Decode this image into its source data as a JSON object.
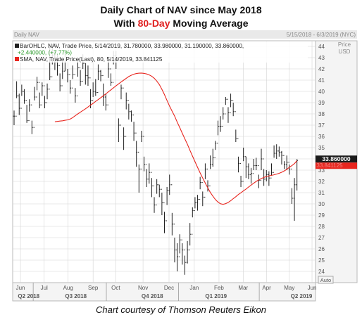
{
  "header": {
    "title_line1": "Daily Chart of NAV since May 2018",
    "title_line2_prefix": "With ",
    "title_line2_highlight": "80-Day",
    "title_line2_suffix": " Moving Average"
  },
  "chart_header": {
    "name": "Daily NAV",
    "date_range": "5/15/2018 - 6/3/2019 (NYC)",
    "price_label": "Price",
    "currency": "USD",
    "ohlc_label": "BarOHLC, NAV, Trade Price, 5/14/2019, 31.780000, 33.980000, 31.190000, 33.860000,",
    "change_label": "+2.440000, (+7.77%)",
    "sma_label": "SMA, NAV, Trade Price(Last), 80, 5/14/2019, 33.841125",
    "last_price_tag": "33.860000",
    "sma_tag": "33.841125",
    "auto_label": "Auto"
  },
  "caption": "Chart courtesy of Thomson Reuters Eikon",
  "colors": {
    "bars": "#1f1f1f",
    "sma": "#e8261f",
    "grid": "#d4d4d4",
    "panel_bg": "#ffffff",
    "tag_bg": "#1a1a1a",
    "sma_tag_bg": "#e8261f",
    "highlight": "#e02020",
    "change_text": "#2a9a2a",
    "axis_text": "#555555"
  },
  "chart_data": {
    "type": "ohlc",
    "ylim": [
      23,
      44.5
    ],
    "y_ticks": [
      24,
      25,
      26,
      27,
      28,
      29,
      30,
      31,
      32,
      33,
      34,
      35,
      36,
      37,
      38,
      39,
      40,
      41,
      42,
      43,
      44
    ],
    "month_labels": [
      "Jun",
      "Jul",
      "Aug",
      "Sep",
      "Oct",
      "Nov",
      "Dec",
      "Jan",
      "Feb",
      "Mar",
      "Apr",
      "May",
      "Jun"
    ],
    "month_positions": [
      2.5,
      11.8,
      21.2,
      31.0,
      39.9,
      50.6,
      60.8,
      70.7,
      80.4,
      89.9,
      99.1,
      108.0,
      116.9
    ],
    "quarter_labels": [
      "Q2 2018",
      "Q3 2018",
      "Q4 2018",
      "Q1 2019",
      "Q2 2019"
    ],
    "quarter_positions": [
      1.5,
      20.0,
      50.0,
      75.0,
      108.5
    ],
    "quarter_dividers": [
      7.5,
      36.2,
      64.5,
      96.2
    ],
    "close": [
      37.8,
      39.6,
      38.5,
      40.0,
      39.2,
      37.4,
      38.8,
      36.8,
      39.5,
      40.8,
      38.8,
      40.5,
      39.0,
      40.2,
      41.3,
      43.2,
      42.6,
      42.3,
      40.5,
      41.8,
      42.8,
      41.5,
      40.3,
      41.5,
      39.6,
      42.1,
      40.9,
      42.5,
      41.4,
      41.2,
      39.2,
      40.0,
      39.9,
      41.8,
      41.4,
      39.5,
      38.8,
      42.0,
      40.8,
      43.2,
      42.8,
      37.0,
      40.3,
      36.0,
      39.2,
      38.2,
      37.9,
      36.3,
      34.6,
      33.1,
      36.0,
      33.5,
      32.2,
      32.8,
      31.6,
      29.9,
      31.7,
      31.3,
      30.1,
      28.5,
      31.2,
      31.7,
      28.2,
      25.9,
      25.3,
      26.8,
      25.9,
      24.8,
      25.9,
      27.3,
      29.4,
      30.1,
      30.4,
      31.9,
      30.6,
      33.1,
      31.6,
      33.5,
      34.1,
      35.4,
      36.9,
      36.9,
      38.0,
      39.3,
      38.1,
      39.2,
      38.2,
      35.8,
      33.6,
      32.0,
      34.2,
      33.3,
      32.6,
      32.7,
      33.4,
      33.4,
      32.1,
      34.0,
      32.2,
      32.6,
      32.3,
      32.8,
      34.5,
      34.7,
      34.6,
      34.3,
      33.5,
      33.7,
      33.1,
      30.5,
      31.7,
      33.86
    ],
    "high": [
      38.3,
      40.9,
      39.8,
      40.6,
      40.2,
      38.8,
      39.3,
      37.4,
      40.4,
      41.3,
      39.9,
      40.8,
      39.6,
      40.7,
      44.0,
      44.2,
      43.6,
      43.3,
      41.6,
      42.7,
      43.6,
      42.0,
      41.0,
      42.3,
      40.3,
      42.8,
      41.9,
      43.3,
      42.5,
      42.3,
      40.2,
      40.8,
      41.1,
      42.4,
      41.9,
      40.7,
      39.8,
      43.0,
      41.6,
      43.6,
      43.6,
      37.6,
      40.6,
      36.8,
      39.9,
      38.9,
      38.3,
      37.3,
      35.6,
      33.5,
      36.5,
      34.2,
      33.1,
      33.6,
      32.3,
      30.6,
      32.2,
      31.7,
      31.0,
      29.3,
      31.5,
      32.6,
      29.2,
      27.0,
      26.5,
      27.3,
      26.5,
      25.4,
      26.7,
      28.3,
      29.7,
      30.6,
      30.8,
      32.4,
      31.1,
      33.6,
      32.1,
      34.3,
      34.9,
      35.6,
      37.4,
      37.8,
      38.6,
      39.5,
      38.6,
      39.8,
      39.0,
      36.6,
      34.2,
      32.5,
      35.0,
      34.2,
      33.6,
      33.2,
      34.0,
      34.1,
      32.6,
      34.9,
      33.1,
      33.0,
      32.9,
      33.6,
      35.2,
      35.3,
      35.1,
      34.7,
      33.8,
      34.3,
      33.5,
      31.4,
      32.3,
      33.98
    ],
    "low": [
      37.0,
      39.4,
      37.9,
      39.6,
      38.9,
      37.2,
      38.2,
      36.2,
      39.2,
      40.1,
      38.5,
      39.6,
      38.5,
      39.3,
      41.0,
      42.4,
      41.9,
      41.4,
      40.0,
      41.1,
      41.8,
      40.8,
      39.8,
      41.1,
      39.0,
      41.3,
      40.5,
      42.0,
      40.6,
      40.5,
      38.5,
      39.5,
      39.6,
      41.0,
      40.9,
      38.7,
      38.3,
      41.2,
      40.5,
      42.4,
      42.0,
      35.5,
      39.3,
      34.8,
      38.4,
      37.5,
      37.3,
      35.6,
      33.3,
      31.0,
      35.5,
      32.9,
      31.5,
      31.8,
      30.6,
      29.2,
      30.9,
      30.6,
      29.0,
      27.4,
      29.9,
      30.8,
      27.2,
      24.8,
      24.0,
      25.6,
      24.6,
      23.7,
      24.7,
      26.3,
      28.8,
      29.6,
      29.4,
      31.3,
      29.8,
      32.2,
      31.1,
      33.1,
      33.3,
      34.8,
      36.1,
      36.4,
      37.5,
      38.8,
      37.2,
      38.6,
      37.8,
      35.5,
      32.8,
      31.5,
      33.8,
      32.3,
      32.2,
      31.8,
      33.0,
      33.0,
      31.4,
      33.0,
      31.6,
      32.0,
      31.6,
      32.5,
      34.1,
      34.0,
      34.2,
      33.5,
      33.1,
      33.0,
      32.6,
      30.0,
      28.5,
      31.19
    ],
    "sma": [
      null,
      null,
      null,
      null,
      null,
      null,
      null,
      null,
      null,
      null,
      null,
      null,
      null,
      null,
      null,
      null,
      37.3,
      37.33,
      37.36,
      37.39,
      37.43,
      37.47,
      37.54,
      37.67,
      37.84,
      38.0,
      38.15,
      38.3,
      38.45,
      38.61,
      38.78,
      38.94,
      39.11,
      39.27,
      39.44,
      39.61,
      39.78,
      39.96,
      40.14,
      40.32,
      40.5,
      40.67,
      40.84,
      41.0,
      41.16,
      41.32,
      41.44,
      41.53,
      41.59,
      41.62,
      41.63,
      41.6,
      41.55,
      41.47,
      41.35,
      41.17,
      40.92,
      40.6,
      40.18,
      39.72,
      39.2,
      38.7,
      38.23,
      37.8,
      37.27,
      36.79,
      36.28,
      35.79,
      35.3,
      34.76,
      34.25,
      33.75,
      33.25,
      32.75,
      32.3,
      31.86,
      31.43,
      31.02,
      30.68,
      30.38,
      30.16,
      30.01,
      29.96,
      30.02,
      30.13,
      30.29,
      30.47,
      30.64,
      30.83,
      30.99,
      31.16,
      31.32,
      31.5,
      31.67,
      31.84,
      32.0,
      32.13,
      32.25,
      32.35,
      32.43,
      32.49,
      32.54,
      32.59,
      32.65,
      32.72,
      32.81,
      32.93,
      33.07,
      33.25,
      33.4,
      33.58,
      33.841125
    ]
  }
}
